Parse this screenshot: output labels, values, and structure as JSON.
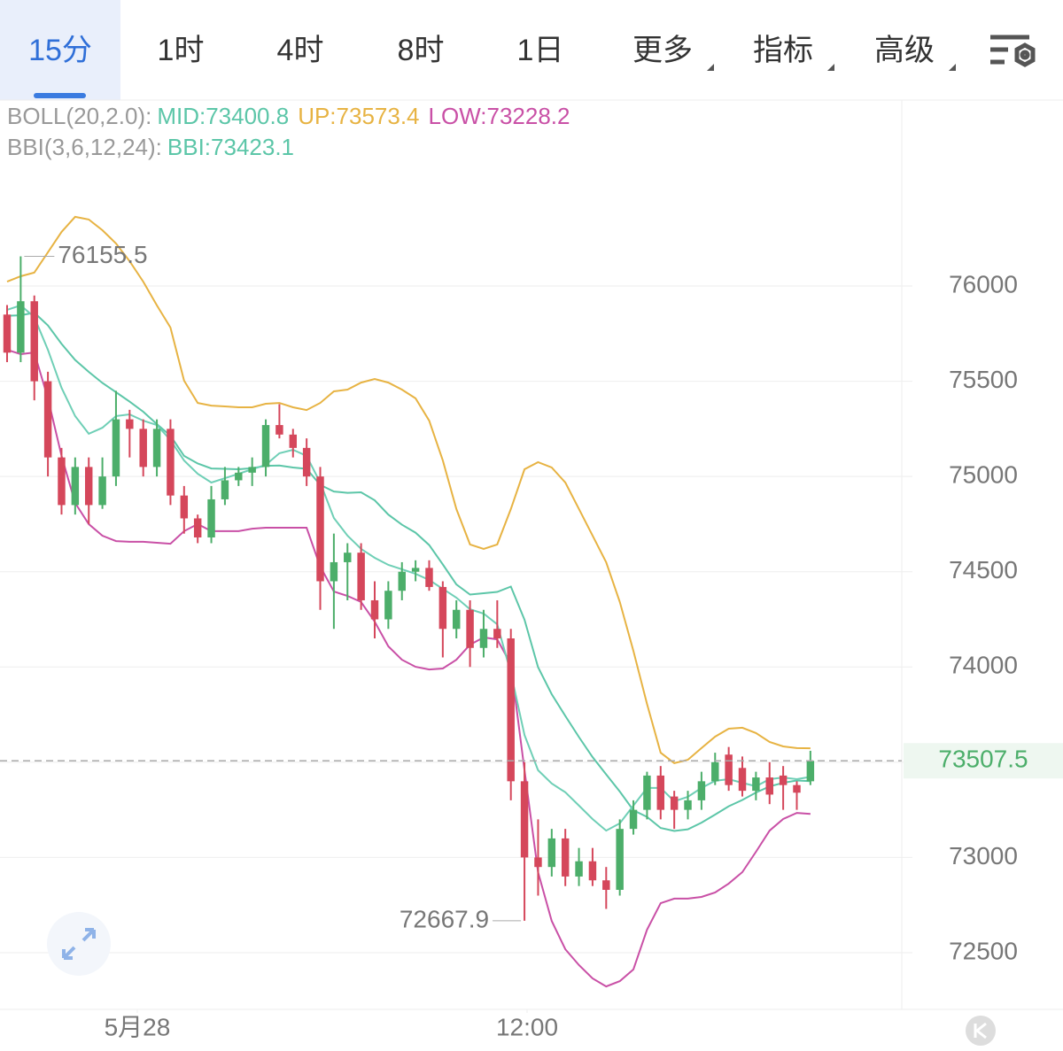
{
  "header": {
    "tabs": [
      "15分",
      "1时",
      "4时",
      "8时",
      "1日",
      "更多",
      "指标",
      "高级"
    ]
  },
  "legend": {
    "boll": {
      "title": "BOLL(20,2.0):",
      "mid": "MID:73400.8",
      "up": "UP:73573.4",
      "low": "LOW:73228.2"
    },
    "bbi": {
      "title": "BBI(3,6,12,24):",
      "bbi": "BBI:73423.1"
    }
  },
  "chart_data": {
    "type": "candlestick",
    "up_color": "#4cae6a",
    "down_color": "#d5475b",
    "xlim": [
      -0.52,
      65.71
    ],
    "xticks": [
      {
        "value": 9.56,
        "label": "5月28"
      },
      {
        "value": 38.19,
        "label": "12:00"
      }
    ],
    "ylim": [
      72202.5,
      76966.8
    ],
    "yticks": [
      72500,
      73000,
      73500,
      74000,
      74500,
      75000,
      75500,
      76000
    ],
    "grid": true,
    "candles": {
      "open": [
        75850,
        75650,
        75920,
        75500,
        75100,
        74850,
        75050,
        74850,
        75000,
        75300,
        75250,
        75050,
        75250,
        74900,
        74780,
        74680,
        74880,
        74980,
        75020,
        75050,
        75270,
        75220,
        75150,
        75000,
        74450,
        74550,
        74600,
        74350,
        74250,
        74400,
        74500,
        74520,
        74420,
        74200,
        74300,
        74100,
        74200,
        74150,
        73400,
        73000,
        72950,
        73100,
        72900,
        72980,
        72880,
        72830,
        73150,
        73250,
        73430,
        73320,
        73250,
        73300,
        73400,
        73540,
        73470,
        73350,
        73420,
        73430,
        73380,
        73400
      ],
      "high": [
        75900,
        76155.5,
        75950,
        75550,
        75150,
        75100,
        75100,
        75100,
        75450,
        75350,
        75300,
        75300,
        75300,
        74950,
        74800,
        74950,
        75050,
        75050,
        75100,
        75300,
        75380,
        75250,
        75200,
        75050,
        74700,
        74650,
        74650,
        74450,
        74450,
        74550,
        74560,
        74560,
        74450,
        74350,
        74350,
        74300,
        74350,
        74200,
        73500,
        73200,
        73150,
        73150,
        73050,
        73050,
        72950,
        73200,
        73300,
        73450,
        73480,
        73350,
        73350,
        73450,
        73550,
        73580,
        73530,
        73450,
        73500,
        73480,
        73400,
        73560
      ],
      "low": [
        75600,
        75600,
        75400,
        75000,
        74800,
        74800,
        74750,
        74830,
        74950,
        75100,
        75000,
        75000,
        74850,
        74700,
        74650,
        74650,
        74850,
        74950,
        74950,
        75000,
        75200,
        75100,
        74950,
        74300,
        74200,
        74350,
        74300,
        74150,
        74200,
        74350,
        74450,
        74400,
        74050,
        74150,
        74000,
        74050,
        74100,
        73300,
        72667.9,
        72800,
        72900,
        72850,
        72850,
        72850,
        72730,
        72800,
        73120,
        73200,
        73200,
        73150,
        73200,
        73250,
        73380,
        73350,
        73320,
        73300,
        73280,
        73250,
        73250,
        73380
      ],
      "close": [
        75650,
        75920,
        75500,
        75100,
        74850,
        75050,
        74850,
        75000,
        75300,
        75250,
        75050,
        75250,
        74900,
        74780,
        74680,
        74880,
        74980,
        75020,
        75050,
        75270,
        75220,
        75150,
        75000,
        74450,
        74550,
        74600,
        74350,
        74250,
        74400,
        74500,
        74520,
        74420,
        74200,
        74300,
        74100,
        74200,
        74150,
        73400,
        73000,
        72950,
        73100,
        72900,
        72980,
        72880,
        72830,
        73150,
        73250,
        73430,
        73250,
        73250,
        73300,
        73400,
        73500,
        73380,
        73350,
        73420,
        73330,
        73380,
        73340,
        73507.5
      ]
    },
    "lines": [
      {
        "color": "#e7b343",
        "values": [
          76023,
          76051,
          76070,
          76177,
          76284,
          76363,
          76349,
          76293,
          76223,
          76130,
          76023,
          75898,
          75782,
          75503,
          75386,
          75372,
          75368,
          75363,
          75363,
          75382,
          75386,
          75363,
          75349,
          75386,
          75447,
          75456,
          75493,
          75512,
          75493,
          75456,
          75410,
          75293,
          75084,
          74829,
          74643,
          74620,
          74643,
          74829,
          75038,
          75075,
          75047,
          74968,
          74829,
          74690,
          74550,
          74341,
          74085,
          73806,
          73550,
          73495,
          73513,
          73574,
          73634,
          73676,
          73681,
          73653,
          73606,
          73583,
          73574,
          73573.4
        ]
      },
      {
        "color": "#5cc6a8",
        "values": [
          75844,
          75846,
          75860,
          75793,
          75696,
          75612,
          75549,
          75491,
          75442,
          75393,
          75340,
          75275,
          75214,
          75108,
          75068,
          75042,
          75040,
          75038,
          75044,
          75056,
          75058,
          75047,
          75040,
          74956,
          74921,
          74914,
          74917,
          74875,
          74800,
          74747,
          74705,
          74640,
          74538,
          74433,
          74380,
          74387,
          74394,
          74422,
          74248,
          73999,
          73857,
          73743,
          73632,
          73527,
          73436,
          73346,
          73248,
          73213,
          73155,
          73139,
          73148,
          73183,
          73225,
          73269,
          73302,
          73341,
          73373,
          73392,
          73404,
          73400.8
        ]
      },
      {
        "color": "#c950a6",
        "values": [
          75665,
          75642,
          75651,
          75410,
          75108,
          74861,
          74750,
          74689,
          74661,
          74657,
          74657,
          74652,
          74647,
          74713,
          74750,
          74713,
          74713,
          74713,
          74726,
          74731,
          74731,
          74731,
          74731,
          74527,
          74396,
          74373,
          74341,
          74238,
          74108,
          74038,
          74001,
          73987,
          73992,
          74038,
          74117,
          74155,
          74145,
          74015,
          73458,
          72923,
          72667,
          72518,
          72435,
          72365,
          72323,
          72351,
          72412,
          72621,
          72760,
          72784,
          72784,
          72793,
          72816,
          72863,
          72923,
          73030,
          73141,
          73202,
          73234,
          73228.2
        ]
      },
      {
        "color": "#6fcfb6",
        "values": [
          75875,
          75898,
          75837,
          75665,
          75465,
          75317,
          75224,
          75256,
          75317,
          75326,
          75293,
          75270,
          75191,
          75084,
          75014,
          74968,
          74991,
          75014,
          75038,
          75061,
          75122,
          75140,
          75108,
          74968,
          74782,
          74689,
          74620,
          74573,
          74536,
          74513,
          74489,
          74457,
          74410,
          74364,
          74303,
          74280,
          74224,
          73969,
          73643,
          73458,
          73388,
          73342,
          73272,
          73202,
          73141,
          73179,
          73272,
          73365,
          73365,
          73295,
          73318,
          73365,
          73402,
          73411,
          73392,
          73374,
          73411,
          73420,
          73411,
          73423.1
        ]
      }
    ]
  }
}
